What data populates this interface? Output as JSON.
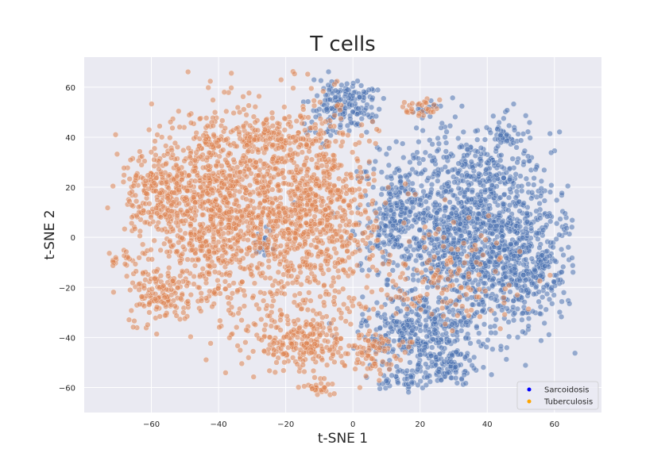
{
  "chart_data": {
    "type": "scatter",
    "title": "T cells",
    "xlabel": "t-SNE 1",
    "ylabel": "t-SNE 2",
    "xlim": [
      -80,
      74
    ],
    "ylim": [
      -70,
      72
    ],
    "xticks": [
      -60,
      -40,
      -20,
      0,
      20,
      40,
      60
    ],
    "yticks": [
      -60,
      -40,
      -20,
      0,
      20,
      40,
      60
    ],
    "grid": true,
    "legend_position": "lower-right",
    "background": "#eaeaf2",
    "series": [
      {
        "name": "Sarcoidosis",
        "color": "#4c72b0",
        "legend_color": "#0000ff",
        "clusters": [
          {
            "cx": 34,
            "cy": 5,
            "sx": 15,
            "sy": 22,
            "n": 1300
          },
          {
            "cx": 52,
            "cy": -12,
            "sx": 8,
            "sy": 14,
            "n": 350
          },
          {
            "cx": 20,
            "cy": -38,
            "sx": 10,
            "sy": 9,
            "n": 350
          },
          {
            "cx": -5,
            "cy": 52,
            "sx": 6,
            "sy": 7,
            "n": 130
          },
          {
            "cx": 3,
            "cy": 55,
            "sx": 3,
            "sy": 4,
            "n": 50
          },
          {
            "cx": 28,
            "cy": -52,
            "sx": 6,
            "sy": 4,
            "n": 90
          },
          {
            "cx": 15,
            "cy": -57,
            "sx": 4,
            "sy": 2.5,
            "n": 40
          },
          {
            "cx": 22,
            "cy": 52,
            "sx": 2.5,
            "sy": 2,
            "n": 15
          },
          {
            "cx": -27,
            "cy": -3,
            "sx": 2,
            "sy": 3,
            "n": 20
          },
          {
            "cx": 45,
            "cy": 40,
            "sx": 4,
            "sy": 3,
            "n": 40
          },
          {
            "cx": 12,
            "cy": 10,
            "sx": 4,
            "sy": 10,
            "n": 120
          }
        ]
      },
      {
        "name": "Tuberculosis",
        "color": "#dd8452",
        "legend_color": "#ffa500",
        "clusters": [
          {
            "cx": -40,
            "cy": 10,
            "sx": 12,
            "sy": 22,
            "n": 1000
          },
          {
            "cx": -12,
            "cy": 10,
            "sx": 11,
            "sy": 24,
            "n": 900
          },
          {
            "cx": -58,
            "cy": 18,
            "sx": 6,
            "sy": 10,
            "n": 220
          },
          {
            "cx": -58,
            "cy": -22,
            "sx": 5,
            "sy": 7,
            "n": 140
          },
          {
            "cx": -25,
            "cy": 40,
            "sx": 6,
            "sy": 6,
            "n": 100
          },
          {
            "cx": -15,
            "cy": -42,
            "sx": 8,
            "sy": 7,
            "n": 220
          },
          {
            "cx": -10,
            "cy": -60,
            "sx": 3,
            "sy": 2,
            "n": 30
          },
          {
            "cx": 20,
            "cy": 51,
            "sx": 2.5,
            "sy": 2.5,
            "n": 30
          },
          {
            "cx": -43,
            "cy": 38,
            "sx": 2,
            "sy": 2,
            "n": 20
          },
          {
            "cx": 5,
            "cy": -45,
            "sx": 5,
            "sy": 5,
            "n": 80
          },
          {
            "cx": 25,
            "cy": -15,
            "sx": 15,
            "sy": 12,
            "n": 150
          },
          {
            "cx": -70,
            "cy": -8,
            "sx": 2.5,
            "sy": 2,
            "n": 15
          }
        ]
      }
    ]
  }
}
